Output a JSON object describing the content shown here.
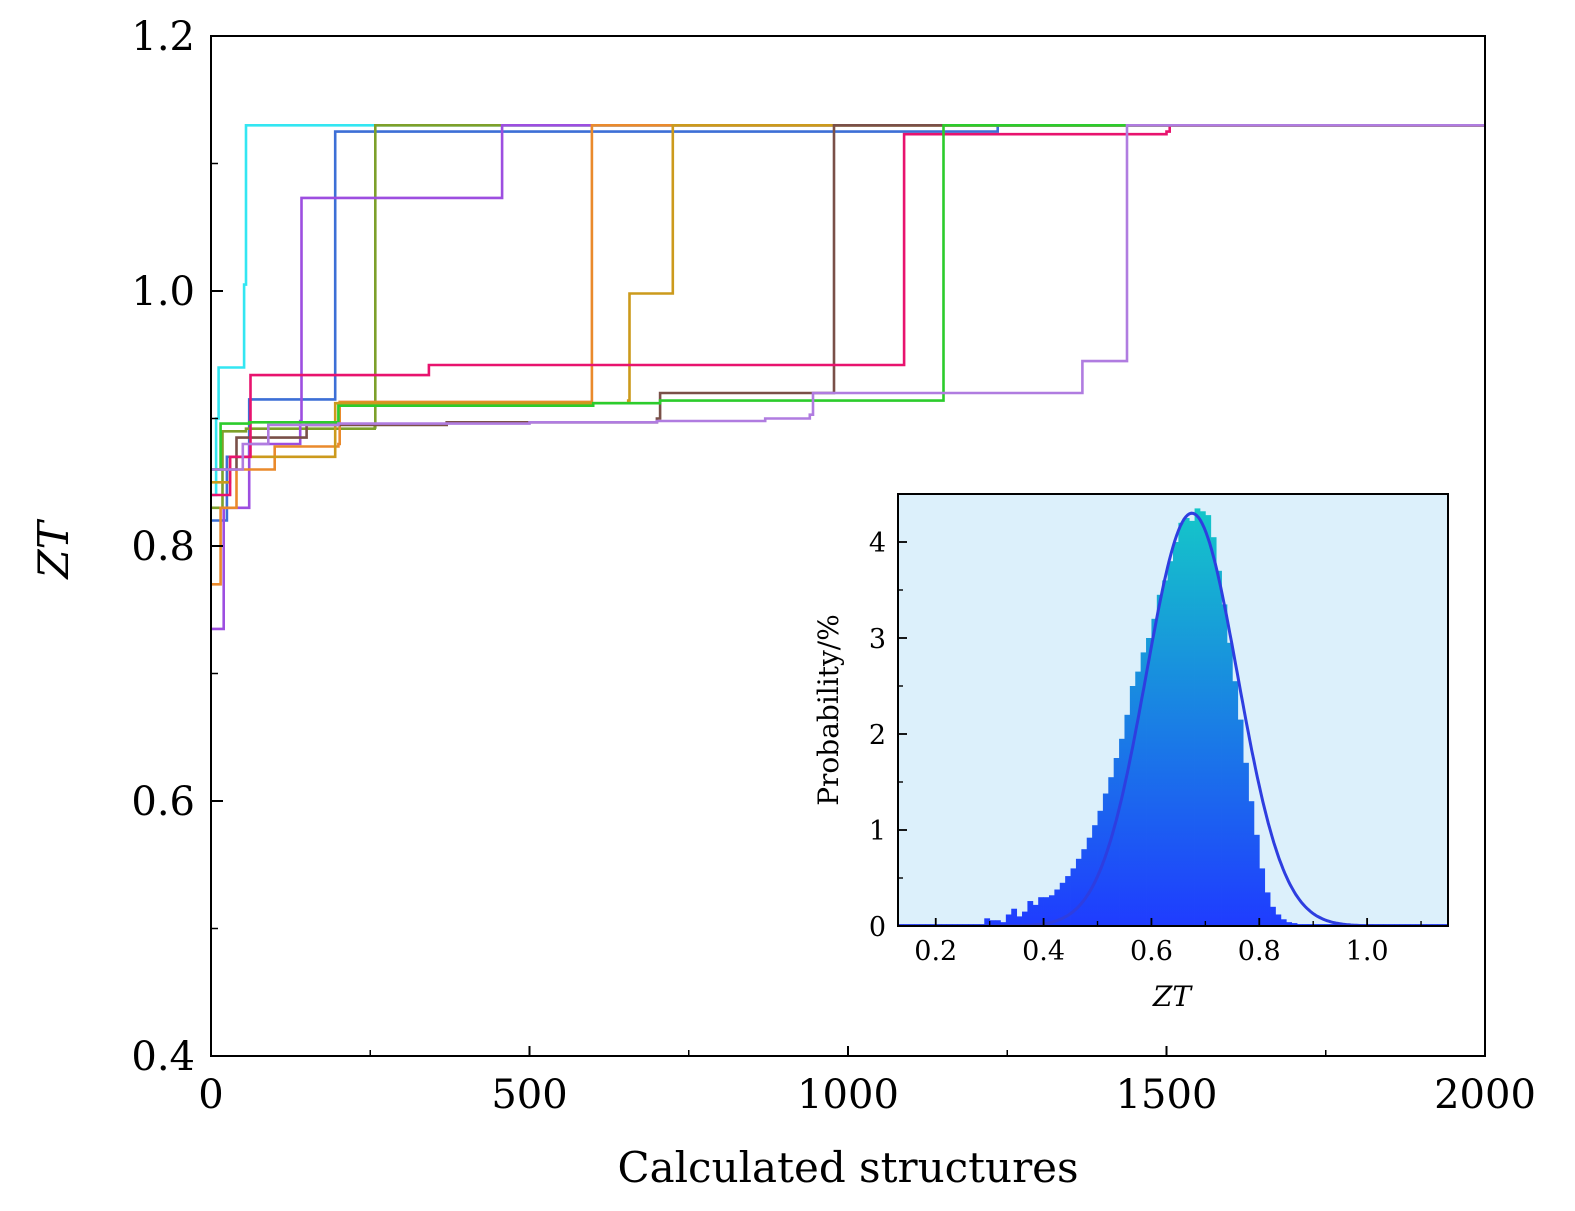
{
  "chart_data": [
    {
      "type": "line",
      "subtype": "step",
      "xlabel": "Calculated structures",
      "ylabel": "ZT",
      "xlim": [
        0,
        2000
      ],
      "ylim": [
        0.4,
        1.2
      ],
      "xticks": [
        0,
        500,
        1000,
        1500,
        2000
      ],
      "xtick_labels": [
        "0",
        "500",
        "1000",
        "1500",
        "2000"
      ],
      "yticks": [
        0.4,
        0.6,
        0.8,
        1.0,
        1.2
      ],
      "ytick_labels": [
        "0.4",
        "0.6",
        "0.8",
        "1.0",
        "1.2"
      ],
      "legend": "none",
      "series": [
        {
          "color": "#33e6f2",
          "points": [
            [
              0,
              0.84
            ],
            [
              8,
              0.9
            ],
            [
              12,
              0.94
            ],
            [
              52,
              0.94
            ],
            [
              52,
              1.005
            ],
            [
              55,
              1.13
            ],
            [
              2000,
              1.13
            ]
          ]
        },
        {
          "color": "#3d6fd6",
          "points": [
            [
              0,
              0.82
            ],
            [
              25,
              0.87
            ],
            [
              60,
              0.915
            ],
            [
              195,
              0.915
            ],
            [
              195,
              1.125
            ],
            [
              1235,
              1.125
            ],
            [
              1235,
              1.13
            ],
            [
              2000,
              1.13
            ]
          ]
        },
        {
          "color": "#7da02a",
          "points": [
            [
              0,
              0.83
            ],
            [
              18,
              0.89
            ],
            [
              55,
              0.892
            ],
            [
              257,
              0.893
            ],
            [
              258,
              1.13
            ],
            [
              2000,
              1.13
            ]
          ]
        },
        {
          "color": "#9d4ee0",
          "points": [
            [
              0,
              0.735
            ],
            [
              20,
              0.83
            ],
            [
              60,
              0.88
            ],
            [
              140,
              0.898
            ],
            [
              142,
              1.073
            ],
            [
              455,
              1.073
            ],
            [
              457,
              1.13
            ],
            [
              2000,
              1.13
            ]
          ]
        },
        {
          "color": "#ea8a2c",
          "points": [
            [
              0,
              0.77
            ],
            [
              15,
              0.83
            ],
            [
              40,
              0.86
            ],
            [
              100,
              0.878
            ],
            [
              200,
              0.88
            ],
            [
              202,
              0.913
            ],
            [
              597,
              0.913
            ],
            [
              598,
              1.13
            ],
            [
              2000,
              1.13
            ]
          ]
        },
        {
          "color": "#cc9a1c",
          "points": [
            [
              0,
              0.85
            ],
            [
              30,
              0.87
            ],
            [
              195,
              0.912
            ],
            [
              655,
              0.914
            ],
            [
              657,
              0.998
            ],
            [
              723,
              0.998
            ],
            [
              725,
              1.13
            ],
            [
              2000,
              1.13
            ]
          ]
        },
        {
          "color": "#7a5048",
          "points": [
            [
              0,
              0.86
            ],
            [
              40,
              0.885
            ],
            [
              150,
              0.895
            ],
            [
              370,
              0.897
            ],
            [
              700,
              0.9
            ],
            [
              705,
              0.92
            ],
            [
              975,
              0.92
            ],
            [
              978,
              1.13
            ],
            [
              2000,
              1.13
            ]
          ]
        },
        {
          "color": "#e8136e",
          "points": [
            [
              0,
              0.84
            ],
            [
              30,
              0.87
            ],
            [
              62,
              0.934
            ],
            [
              340,
              0.934
            ],
            [
              342,
              0.942
            ],
            [
              1085,
              0.942
            ],
            [
              1088,
              1.123
            ],
            [
              1500,
              1.125
            ],
            [
              1505,
              1.13
            ],
            [
              2000,
              1.13
            ]
          ]
        },
        {
          "color": "#2ccc2c",
          "points": [
            [
              0,
              0.86
            ],
            [
              15,
              0.896
            ],
            [
              60,
              0.897
            ],
            [
              200,
              0.91
            ],
            [
              600,
              0.912
            ],
            [
              705,
              0.914
            ],
            [
              1148,
              0.914
            ],
            [
              1150,
              1.13
            ],
            [
              2000,
              1.13
            ]
          ]
        },
        {
          "color": "#b07ce0",
          "points": [
            [
              0,
              0.86
            ],
            [
              50,
              0.88
            ],
            [
              90,
              0.895
            ],
            [
              200,
              0.896
            ],
            [
              500,
              0.897
            ],
            [
              700,
              0.898
            ],
            [
              870,
              0.9
            ],
            [
              940,
              0.903
            ],
            [
              945,
              0.92
            ],
            [
              1366,
              0.92
            ],
            [
              1368,
              0.945
            ],
            [
              1435,
              0.945
            ],
            [
              1438,
              1.13
            ],
            [
              2000,
              1.13
            ]
          ]
        }
      ]
    },
    {
      "type": "bar",
      "subtype": "histogram",
      "inset": true,
      "xlabel": "ZT",
      "ylabel": "Probability/%",
      "xlim": [
        0.13,
        1.15
      ],
      "ylim": [
        0,
        4.5
      ],
      "xticks": [
        0.2,
        0.4,
        0.6,
        0.8,
        1.0
      ],
      "xtick_labels": [
        "0.2",
        "0.4",
        "0.6",
        "0.8",
        "1.0"
      ],
      "yticks": [
        0,
        1,
        2,
        3,
        4
      ],
      "ytick_labels": [
        "0",
        "1",
        "2",
        "3",
        "4"
      ],
      "bin_start": 0.13,
      "bin_width": 0.01,
      "values": [
        0.02,
        0.02,
        0.02,
        0.02,
        0.02,
        0.02,
        0.02,
        0.02,
        0.02,
        0.02,
        0.02,
        0.02,
        0.02,
        0.02,
        0.02,
        0.02,
        0.08,
        0.06,
        0.06,
        0.04,
        0.12,
        0.18,
        0.1,
        0.15,
        0.26,
        0.22,
        0.3,
        0.3,
        0.32,
        0.38,
        0.45,
        0.52,
        0.6,
        0.7,
        0.8,
        0.92,
        1.05,
        1.2,
        1.38,
        1.55,
        1.75,
        1.95,
        2.2,
        2.5,
        2.65,
        2.85,
        3.0,
        3.2,
        3.45,
        3.6,
        3.8,
        4.0,
        4.2,
        4.25,
        4.22,
        4.35,
        4.32,
        4.28,
        4.05,
        3.7,
        3.35,
        2.95,
        2.55,
        2.15,
        1.7,
        1.3,
        0.95,
        0.6,
        0.35,
        0.2,
        0.12,
        0.07,
        0.04,
        0.03,
        0.02,
        0.02,
        0.02,
        0.02,
        0.02,
        0.02,
        0.02,
        0.02,
        0.02,
        0.02,
        0.02,
        0.02,
        0.02,
        0.02,
        0.02,
        0.02,
        0.02,
        0.02,
        0.02,
        0.02,
        0.02,
        0.02,
        0.02,
        0.02,
        0.02,
        0.02,
        0.02,
        0.02
      ],
      "bar_color_top": "#14c8c8",
      "bar_color_bottom": "#1f3cff",
      "background": "#dcf0fb",
      "fit_curve": {
        "color": "#2e3ee0",
        "mean": 0.675,
        "sd": 0.085,
        "peak": 4.3
      }
    }
  ]
}
